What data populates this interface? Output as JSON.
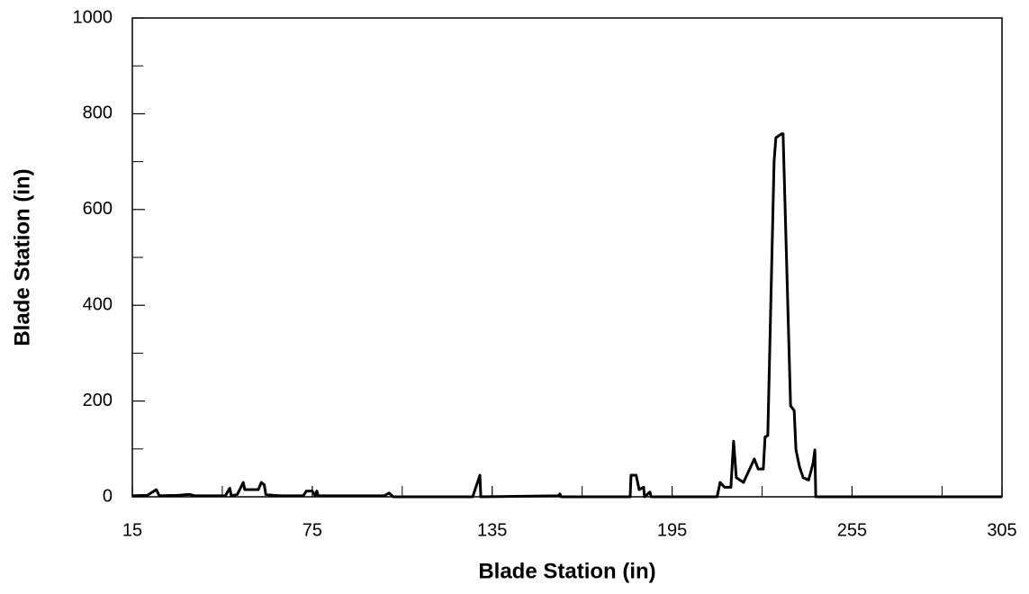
{
  "chart_data": {
    "type": "line",
    "x_label": "Blade Station (in)",
    "y_label": "Blade Station (in)",
    "xlim": [
      15,
      305
    ],
    "xticks": [
      15,
      75,
      135,
      195,
      255,
      305
    ],
    "x_minor_ticks": [
      45,
      105,
      165,
      225,
      285
    ],
    "ylim": [
      0,
      1000
    ],
    "yticks": [
      0,
      200,
      400,
      600,
      800,
      1000
    ],
    "y_minor_ticks": [
      100,
      300,
      500,
      700,
      900
    ],
    "series": [
      {
        "color": "#000000",
        "x": [
          15,
          20,
          23,
          24,
          30,
          34,
          36,
          46,
          47.5,
          48,
          50,
          52,
          52.5,
          57,
          58,
          59,
          59.5,
          62,
          65,
          72,
          73,
          75,
          76,
          76.5,
          77,
          99,
          100.6,
          102,
          128.5,
          130.9,
          131.2,
          157,
          157.6,
          158,
          181,
          181.3,
          183,
          184,
          185.5,
          185.8,
          187.6,
          188,
          210,
          211,
          212.5,
          214.6,
          215.5,
          216.4,
          218.8,
          222.4,
          223.7,
          225.4,
          226,
          226.9,
          229,
          229.6,
          231.5,
          232,
          234.5,
          235.7,
          236.3,
          237.5,
          238.7,
          240.5,
          242,
          242.6,
          242.9,
          305
        ],
        "values": [
          2,
          3,
          15,
          2,
          3,
          5,
          2,
          2,
          18,
          2,
          5,
          30,
          15,
          15,
          30,
          25,
          5,
          3,
          2,
          2,
          12,
          12,
          2,
          12,
          2,
          2,
          8,
          0,
          0,
          45,
          0,
          2,
          6,
          0,
          0,
          45,
          45,
          15,
          20,
          0,
          10,
          0,
          0,
          30,
          20,
          20,
          116,
          40,
          30,
          79,
          58,
          58,
          125,
          128,
          700,
          750,
          758,
          758,
          190,
          180,
          98,
          62,
          40,
          35,
          70,
          98,
          0,
          0
        ]
      }
    ]
  }
}
